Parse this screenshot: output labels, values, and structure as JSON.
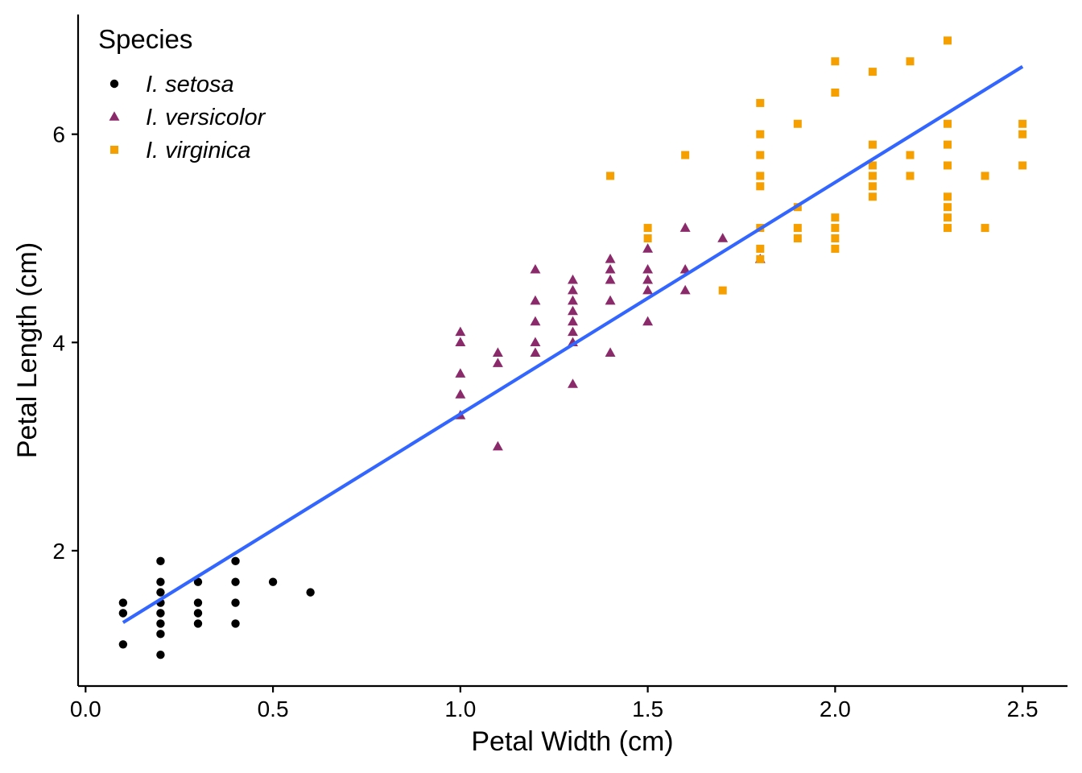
{
  "chart_data": {
    "type": "scatter",
    "xlabel": "Petal Width (cm)",
    "ylabel": "Petal Length (cm)",
    "xlim": [
      -0.02,
      2.62
    ],
    "ylim": [
      0.7,
      7.15
    ],
    "x_ticks": [
      0.0,
      0.5,
      1.0,
      1.5,
      2.0,
      2.5
    ],
    "x_tick_labels": [
      "0.0",
      "0.5",
      "1.0",
      "1.5",
      "2.0",
      "2.5"
    ],
    "y_ticks": [
      2,
      4,
      6
    ],
    "y_tick_labels": [
      "2",
      "4",
      "6"
    ],
    "grid": false,
    "legend": {
      "title": "Species",
      "position": "top-left"
    },
    "series": [
      {
        "name": "I. setosa",
        "marker": "circle",
        "color": "#000000",
        "points": [
          [
            0.1,
            1.1
          ],
          [
            0.1,
            1.4
          ],
          [
            0.1,
            1.5
          ],
          [
            0.2,
            1.0
          ],
          [
            0.2,
            1.2
          ],
          [
            0.2,
            1.3
          ],
          [
            0.2,
            1.4
          ],
          [
            0.2,
            1.5
          ],
          [
            0.2,
            1.6
          ],
          [
            0.2,
            1.7
          ],
          [
            0.2,
            1.9
          ],
          [
            0.3,
            1.3
          ],
          [
            0.3,
            1.4
          ],
          [
            0.3,
            1.5
          ],
          [
            0.3,
            1.7
          ],
          [
            0.4,
            1.3
          ],
          [
            0.4,
            1.5
          ],
          [
            0.4,
            1.7
          ],
          [
            0.4,
            1.9
          ],
          [
            0.5,
            1.7
          ],
          [
            0.6,
            1.6
          ]
        ]
      },
      {
        "name": "I. versicolor",
        "marker": "triangle",
        "color": "#8B2A6B",
        "points": [
          [
            1.0,
            3.3
          ],
          [
            1.0,
            3.5
          ],
          [
            1.0,
            3.7
          ],
          [
            1.0,
            4.0
          ],
          [
            1.0,
            4.1
          ],
          [
            1.1,
            3.0
          ],
          [
            1.1,
            3.8
          ],
          [
            1.1,
            3.9
          ],
          [
            1.2,
            3.9
          ],
          [
            1.2,
            4.0
          ],
          [
            1.2,
            4.2
          ],
          [
            1.2,
            4.4
          ],
          [
            1.2,
            4.7
          ],
          [
            1.3,
            3.6
          ],
          [
            1.3,
            4.0
          ],
          [
            1.3,
            4.1
          ],
          [
            1.3,
            4.2
          ],
          [
            1.3,
            4.3
          ],
          [
            1.3,
            4.4
          ],
          [
            1.3,
            4.5
          ],
          [
            1.3,
            4.6
          ],
          [
            1.4,
            3.9
          ],
          [
            1.4,
            4.4
          ],
          [
            1.4,
            4.6
          ],
          [
            1.4,
            4.7
          ],
          [
            1.4,
            4.8
          ],
          [
            1.5,
            4.2
          ],
          [
            1.5,
            4.5
          ],
          [
            1.5,
            4.6
          ],
          [
            1.5,
            4.7
          ],
          [
            1.5,
            4.9
          ],
          [
            1.6,
            4.5
          ],
          [
            1.6,
            4.7
          ],
          [
            1.6,
            5.1
          ],
          [
            1.7,
            5.0
          ],
          [
            1.8,
            4.8
          ]
        ]
      },
      {
        "name": "I. virginica",
        "marker": "square",
        "color": "#F5A000",
        "points": [
          [
            1.4,
            5.6
          ],
          [
            1.5,
            5.0
          ],
          [
            1.5,
            5.1
          ],
          [
            1.6,
            5.8
          ],
          [
            1.7,
            4.5
          ],
          [
            1.8,
            4.8
          ],
          [
            1.8,
            4.9
          ],
          [
            1.8,
            5.1
          ],
          [
            1.8,
            5.5
          ],
          [
            1.8,
            5.6
          ],
          [
            1.8,
            5.8
          ],
          [
            1.8,
            6.0
          ],
          [
            1.8,
            6.3
          ],
          [
            1.9,
            5.0
          ],
          [
            1.9,
            5.1
          ],
          [
            1.9,
            5.3
          ],
          [
            1.9,
            6.1
          ],
          [
            2.0,
            4.9
          ],
          [
            2.0,
            5.0
          ],
          [
            2.0,
            5.1
          ],
          [
            2.0,
            5.2
          ],
          [
            2.0,
            6.4
          ],
          [
            2.0,
            6.7
          ],
          [
            2.1,
            5.4
          ],
          [
            2.1,
            5.5
          ],
          [
            2.1,
            5.6
          ],
          [
            2.1,
            5.7
          ],
          [
            2.1,
            5.9
          ],
          [
            2.1,
            6.6
          ],
          [
            2.2,
            5.6
          ],
          [
            2.2,
            5.8
          ],
          [
            2.2,
            6.7
          ],
          [
            2.3,
            5.1
          ],
          [
            2.3,
            5.2
          ],
          [
            2.3,
            5.3
          ],
          [
            2.3,
            5.4
          ],
          [
            2.3,
            5.7
          ],
          [
            2.3,
            5.9
          ],
          [
            2.3,
            6.1
          ],
          [
            2.3,
            6.9
          ],
          [
            2.4,
            5.1
          ],
          [
            2.4,
            5.6
          ],
          [
            2.5,
            5.7
          ],
          [
            2.5,
            6.0
          ],
          [
            2.5,
            6.1
          ]
        ]
      }
    ],
    "trend_line": {
      "type": "linear",
      "color": "#3366FF",
      "x_range": [
        0.1,
        2.5
      ],
      "y_range": [
        1.31,
        6.65
      ]
    }
  }
}
